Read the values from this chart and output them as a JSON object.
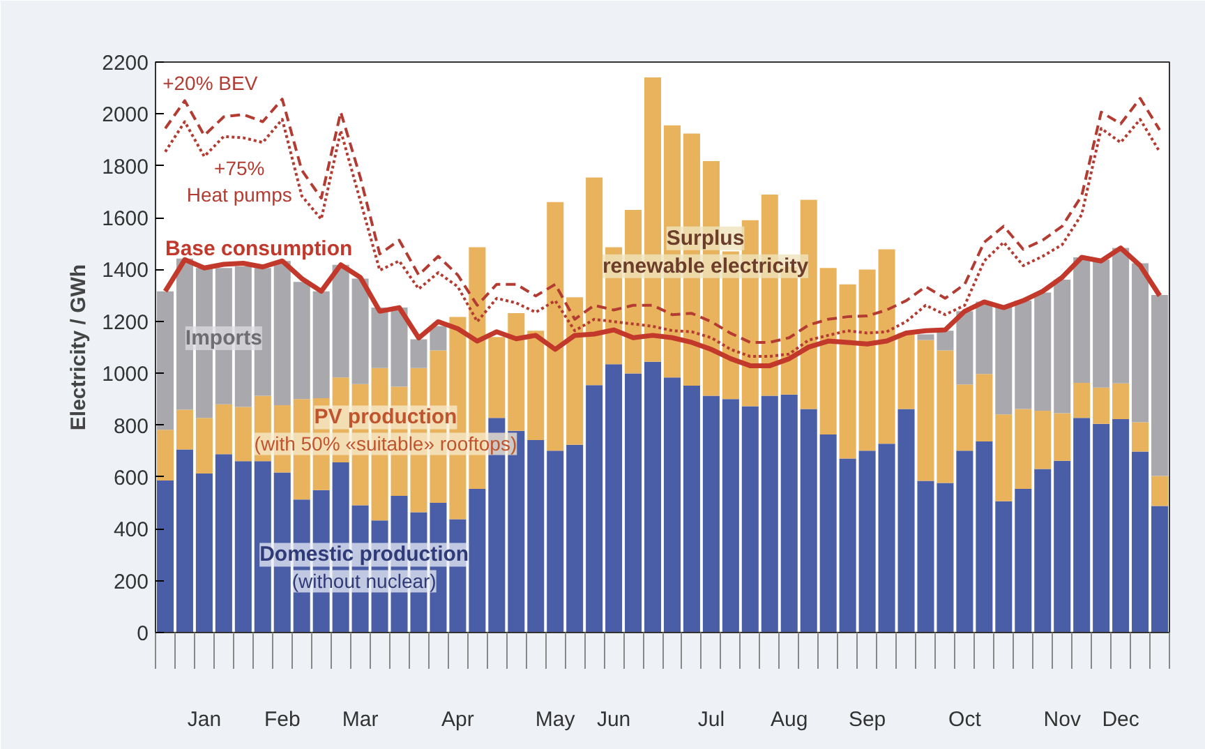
{
  "chart_data": {
    "type": "bar",
    "stacked": true,
    "ylabel": "Electricity / GWh",
    "grid": false,
    "categories": [
      null,
      null,
      "Jan",
      null,
      null,
      null,
      "Feb",
      null,
      null,
      null,
      "Mar",
      null,
      null,
      null,
      null,
      "Apr",
      null,
      null,
      null,
      null,
      "May",
      null,
      null,
      "Jun",
      null,
      null,
      null,
      null,
      "Jul",
      null,
      null,
      null,
      "Aug",
      null,
      null,
      null,
      "Sep",
      null,
      null,
      null,
      null,
      "Oct",
      null,
      null,
      null,
      null,
      "Nov",
      null,
      null,
      "Dec",
      null,
      null
    ],
    "ylim": [
      0,
      2200
    ],
    "yticks": [
      0,
      200,
      400,
      600,
      800,
      1000,
      1200,
      1400,
      1600,
      1800,
      2000,
      2200
    ],
    "annotations": [
      "Surplus\nrenewable electricity"
    ],
    "series": [
      {
        "name": "Domestic production\n(without nuclear)",
        "color": "#4a5ea8",
        "values": [
          586,
          706,
          613,
          688,
          661,
          661,
          617,
          513,
          549,
          656,
          491,
          432,
          527,
          464,
          500,
          437,
          554,
          828,
          778,
          742,
          701,
          724,
          954,
          1035,
          999,
          1044,
          984,
          952,
          913,
          900,
          873,
          913,
          918,
          862,
          764,
          671,
          701,
          728,
          862,
          585,
          577,
          701,
          737,
          506,
          554,
          631,
          662,
          828,
          805,
          823,
          698,
          488
        ]
      },
      {
        "name": "PV production\n(with 50% «suitable» rooftops)",
        "color": "#e8b35c",
        "values": [
          196,
          153,
          215,
          192,
          209,
          252,
          260,
          387,
          355,
          328,
          467,
          588,
          421,
          556,
          588,
          780,
          932,
          312,
          454,
          422,
          959,
          569,
          801,
          451,
          631,
          1097,
          972,
          972,
          905,
          570,
          717,
          776,
          492,
          807,
          642,
          672,
          699,
          750,
          293,
          543,
          511,
          256,
          260,
          335,
          308,
          224,
          184,
          135,
          140,
          138,
          113,
          116
        ]
      },
      {
        "name": "Imports",
        "color": "#a9a9ad",
        "values": [
          534,
          583,
          578,
          526,
          542,
          493,
          556,
          452,
          412,
          434,
          407,
          233,
          305,
          111,
          94,
          0,
          0,
          0,
          0,
          0,
          0,
          0,
          0,
          0,
          0,
          0,
          0,
          0,
          0,
          0,
          0,
          0,
          0,
          0,
          0,
          0,
          0,
          0,
          0,
          22,
          76,
          282,
          279,
          418,
          418,
          456,
          515,
          484,
          493,
          522,
          613,
          698
        ]
      },
      {
        "name": "Base consumption",
        "type": "line",
        "line_style": "solid",
        "color": "#c2382b",
        "values": [
          1316,
          1438,
          1406,
          1420,
          1424,
          1410,
          1433,
          1365,
          1316,
          1418,
          1370,
          1239,
          1253,
          1136,
          1199,
          1172,
          1124,
          1160,
          1133,
          1146,
          1092,
          1146,
          1151,
          1167,
          1137,
          1146,
          1137,
          1119,
          1092,
          1056,
          1029,
          1029,
          1056,
          1101,
          1124,
          1119,
          1113,
          1124,
          1155,
          1164,
          1167,
          1239,
          1275,
          1253,
          1280,
          1316,
          1370,
          1447,
          1433,
          1483,
          1415,
          1299
        ]
      },
      {
        "name": "+20% BEV",
        "type": "line",
        "line_style": "dashed",
        "color": "#b33b32",
        "values": [
          1944,
          2051,
          1917,
          1989,
          1998,
          1970,
          2057,
          1783,
          1675,
          2007,
          1756,
          1460,
          1513,
          1379,
          1451,
          1379,
          1262,
          1343,
          1343,
          1298,
          1343,
          1208,
          1262,
          1244,
          1262,
          1262,
          1226,
          1231,
          1199,
          1154,
          1119,
          1119,
          1137,
          1186,
          1208,
          1218,
          1221,
          1244,
          1280,
          1334,
          1289,
          1343,
          1505,
          1567,
          1478,
          1513,
          1567,
          1684,
          2007,
          1962,
          2060,
          1938
        ]
      },
      {
        "name": "+75%\nHeat pumps",
        "type": "line",
        "line_style": "dotted",
        "color": "#b33b32",
        "values": [
          1854,
          1970,
          1836,
          1913,
          1908,
          1890,
          1979,
          1684,
          1594,
          1935,
          1666,
          1397,
          1433,
          1325,
          1388,
          1334,
          1199,
          1289,
          1271,
          1235,
          1280,
          1164,
          1208,
          1199,
          1190,
          1181,
          1164,
          1160,
          1137,
          1092,
          1065,
          1065,
          1074,
          1128,
          1146,
          1164,
          1155,
          1160,
          1199,
          1262,
          1226,
          1262,
          1433,
          1505,
          1415,
          1451,
          1496,
          1612,
          1944,
          1890,
          1979,
          1854
        ]
      }
    ]
  }
}
